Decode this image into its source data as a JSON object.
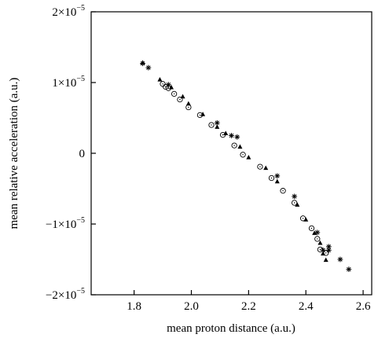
{
  "chart_data": {
    "type": "scatter",
    "title": "",
    "xlabel": "mean proton distance (a.u.)",
    "ylabel": "mean relative acceleration (a.u.)",
    "xlim": [
      1.65,
      2.63
    ],
    "ylim": [
      -2e-05,
      2e-05
    ],
    "grid": false,
    "legend": "none",
    "x_ticks": [
      {
        "value": 1.8,
        "label": "1.8"
      },
      {
        "value": 2.0,
        "label": "2.0"
      },
      {
        "value": 2.2,
        "label": "2.2"
      },
      {
        "value": 2.4,
        "label": "2.4"
      },
      {
        "value": 2.6,
        "label": "2.6"
      }
    ],
    "y_ticks": [
      {
        "value": 2e-05,
        "mantissa": "2",
        "sign": "",
        "exponent": "−5"
      },
      {
        "value": 1e-05,
        "mantissa": "1",
        "sign": "",
        "exponent": "−5"
      },
      {
        "value": 0,
        "plain": "0"
      },
      {
        "value": -1e-05,
        "mantissa": "1",
        "sign": "−",
        "exponent": "−5"
      },
      {
        "value": -2e-05,
        "mantissa": "2",
        "sign": "−",
        "exponent": "−5"
      }
    ],
    "series": [
      {
        "marker": "asterisk",
        "points": [
          {
            "x": 1.83,
            "y": 1.27e-05
          },
          {
            "x": 1.85,
            "y": 1.21e-05
          },
          {
            "x": 1.92,
            "y": 9.7e-06
          },
          {
            "x": 2.09,
            "y": 4.3e-06
          },
          {
            "x": 2.14,
            "y": 2.5e-06
          },
          {
            "x": 2.16,
            "y": 2.3e-06
          },
          {
            "x": 2.3,
            "y": -3.2e-06
          },
          {
            "x": 2.36,
            "y": -6.1e-06
          },
          {
            "x": 2.44,
            "y": -1.12e-05
          },
          {
            "x": 2.46,
            "y": -1.37e-05
          },
          {
            "x": 2.48,
            "y": -1.32e-05
          },
          {
            "x": 2.48,
            "y": -1.37e-05
          },
          {
            "x": 2.52,
            "y": -1.5e-05
          },
          {
            "x": 2.55,
            "y": -1.64e-05
          }
        ]
      },
      {
        "marker": "circle",
        "points": [
          {
            "x": 1.9,
            "y": 9.8e-06
          },
          {
            "x": 1.91,
            "y": 9.4e-06
          },
          {
            "x": 1.92,
            "y": 9.2e-06
          },
          {
            "x": 1.94,
            "y": 8.4e-06
          },
          {
            "x": 1.96,
            "y": 7.6e-06
          },
          {
            "x": 1.99,
            "y": 6.5e-06
          },
          {
            "x": 2.03,
            "y": 5.4e-06
          },
          {
            "x": 2.07,
            "y": 4e-06
          },
          {
            "x": 2.11,
            "y": 2.6e-06
          },
          {
            "x": 2.15,
            "y": 1.1e-06
          },
          {
            "x": 2.18,
            "y": -2e-07
          },
          {
            "x": 2.24,
            "y": -1.9e-06
          },
          {
            "x": 2.28,
            "y": -3.5e-06
          },
          {
            "x": 2.32,
            "y": -5.3e-06
          },
          {
            "x": 2.36,
            "y": -7e-06
          },
          {
            "x": 2.39,
            "y": -9.2e-06
          },
          {
            "x": 2.42,
            "y": -1.06e-05
          },
          {
            "x": 2.44,
            "y": -1.21e-05
          },
          {
            "x": 2.45,
            "y": -1.36e-05
          },
          {
            "x": 2.47,
            "y": -1.41e-05
          }
        ]
      },
      {
        "marker": "triangle",
        "points": [
          {
            "x": 1.83,
            "y": 1.28e-05
          },
          {
            "x": 1.89,
            "y": 1.04e-05
          },
          {
            "x": 1.93,
            "y": 9.3e-06
          },
          {
            "x": 1.97,
            "y": 8e-06
          },
          {
            "x": 1.99,
            "y": 7e-06
          },
          {
            "x": 2.04,
            "y": 5.5e-06
          },
          {
            "x": 2.09,
            "y": 3.7e-06
          },
          {
            "x": 2.12,
            "y": 2.8e-06
          },
          {
            "x": 2.17,
            "y": 9e-07
          },
          {
            "x": 2.2,
            "y": -6e-07
          },
          {
            "x": 2.26,
            "y": -2.1e-06
          },
          {
            "x": 2.3,
            "y": -4e-06
          },
          {
            "x": 2.37,
            "y": -7.3e-06
          },
          {
            "x": 2.4,
            "y": -9.4e-06
          },
          {
            "x": 2.43,
            "y": -1.13e-05
          },
          {
            "x": 2.45,
            "y": -1.27e-05
          },
          {
            "x": 2.46,
            "y": -1.42e-05
          },
          {
            "x": 2.47,
            "y": -1.51e-05
          }
        ]
      }
    ]
  }
}
